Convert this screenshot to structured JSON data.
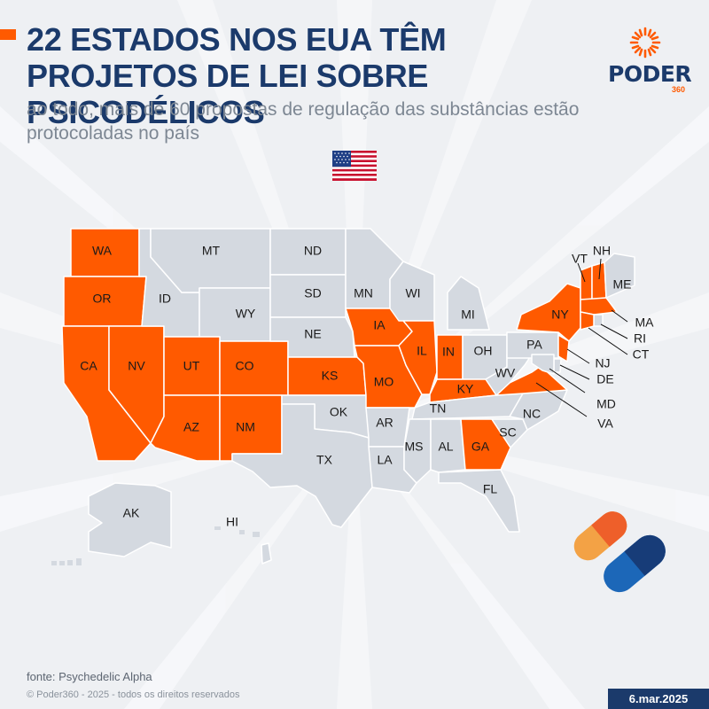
{
  "header": {
    "title": "22 ESTADOS NOS EUA TÊM PROJETOS DE LEI SOBRE PSICODÉLICOS",
    "subtitle": "ao todo, mais de 60 propostas de regulação das substâncias estão protocoladas no país"
  },
  "logo": {
    "wordmark": "PODER",
    "number": "360"
  },
  "colors": {
    "highlight": "#ff5a00",
    "neutral": "#d4d9e0",
    "state_border": "#ffffff",
    "title": "#1b3a6b",
    "subtitle": "#7d8793",
    "background": "#eef0f3"
  },
  "map": {
    "states": [
      {
        "code": "WA",
        "label": "WA",
        "has_bill": true
      },
      {
        "code": "OR",
        "label": "OR",
        "has_bill": true
      },
      {
        "code": "CA",
        "label": "CA",
        "has_bill": true
      },
      {
        "code": "NV",
        "label": "NV",
        "has_bill": true
      },
      {
        "code": "ID",
        "label": "ID",
        "has_bill": false
      },
      {
        "code": "MT",
        "label": "MT",
        "has_bill": false
      },
      {
        "code": "WY",
        "label": "WY",
        "has_bill": false
      },
      {
        "code": "UT",
        "label": "UT",
        "has_bill": true
      },
      {
        "code": "CO",
        "label": "CO",
        "has_bill": true
      },
      {
        "code": "AZ",
        "label": "AZ",
        "has_bill": true
      },
      {
        "code": "NM",
        "label": "NM",
        "has_bill": true
      },
      {
        "code": "ND",
        "label": "ND",
        "has_bill": false
      },
      {
        "code": "SD",
        "label": "SD",
        "has_bill": false
      },
      {
        "code": "NE",
        "label": "NE",
        "has_bill": false
      },
      {
        "code": "KS",
        "label": "KS",
        "has_bill": true
      },
      {
        "code": "OK",
        "label": "OK",
        "has_bill": false
      },
      {
        "code": "TX",
        "label": "TX",
        "has_bill": false
      },
      {
        "code": "MN",
        "label": "MN",
        "has_bill": false
      },
      {
        "code": "IA",
        "label": "IA",
        "has_bill": true
      },
      {
        "code": "MO",
        "label": "MO",
        "has_bill": true
      },
      {
        "code": "AR",
        "label": "AR",
        "has_bill": false
      },
      {
        "code": "LA",
        "label": "LA",
        "has_bill": false
      },
      {
        "code": "WI",
        "label": "WI",
        "has_bill": false
      },
      {
        "code": "IL",
        "label": "IL",
        "has_bill": true
      },
      {
        "code": "MI",
        "label": "MI",
        "has_bill": false
      },
      {
        "code": "IN",
        "label": "IN",
        "has_bill": true
      },
      {
        "code": "OH",
        "label": "OH",
        "has_bill": false
      },
      {
        "code": "KY",
        "label": "KY",
        "has_bill": true
      },
      {
        "code": "TN",
        "label": "TN",
        "has_bill": false
      },
      {
        "code": "MS",
        "label": "MS",
        "has_bill": false
      },
      {
        "code": "AL",
        "label": "AL",
        "has_bill": false
      },
      {
        "code": "GA",
        "label": "GA",
        "has_bill": true
      },
      {
        "code": "FL",
        "label": "FL",
        "has_bill": false
      },
      {
        "code": "SC",
        "label": "SC",
        "has_bill": false
      },
      {
        "code": "NC",
        "label": "NC",
        "has_bill": false
      },
      {
        "code": "VA",
        "label": "VA",
        "has_bill": true
      },
      {
        "code": "WV",
        "label": "WV",
        "has_bill": false
      },
      {
        "code": "PA",
        "label": "PA",
        "has_bill": false
      },
      {
        "code": "NY",
        "label": "NY",
        "has_bill": true
      },
      {
        "code": "VT",
        "label": "VT",
        "has_bill": true
      },
      {
        "code": "NH",
        "label": "NH",
        "has_bill": true
      },
      {
        "code": "ME",
        "label": "ME",
        "has_bill": false
      },
      {
        "code": "MA",
        "label": "MA",
        "has_bill": true
      },
      {
        "code": "RI",
        "label": "RI",
        "has_bill": false
      },
      {
        "code": "CT",
        "label": "CT",
        "has_bill": true
      },
      {
        "code": "NJ",
        "label": "NJ",
        "has_bill": true
      },
      {
        "code": "DE",
        "label": "DE",
        "has_bill": false
      },
      {
        "code": "MD",
        "label": "MD",
        "has_bill": false
      },
      {
        "code": "AK",
        "label": "AK",
        "has_bill": false
      },
      {
        "code": "HI",
        "label": "HI",
        "has_bill": false
      }
    ]
  },
  "icons": {
    "flag": "us-flag-icon",
    "pills": "capsule-pills-icon",
    "logo_mark": "sunburst-icon"
  },
  "footer": {
    "source": "fonte: Psychedelic Alpha",
    "copyright": "© Poder360 - 2025 - todos os direitos reservados",
    "date": "6.mar.2025"
  }
}
